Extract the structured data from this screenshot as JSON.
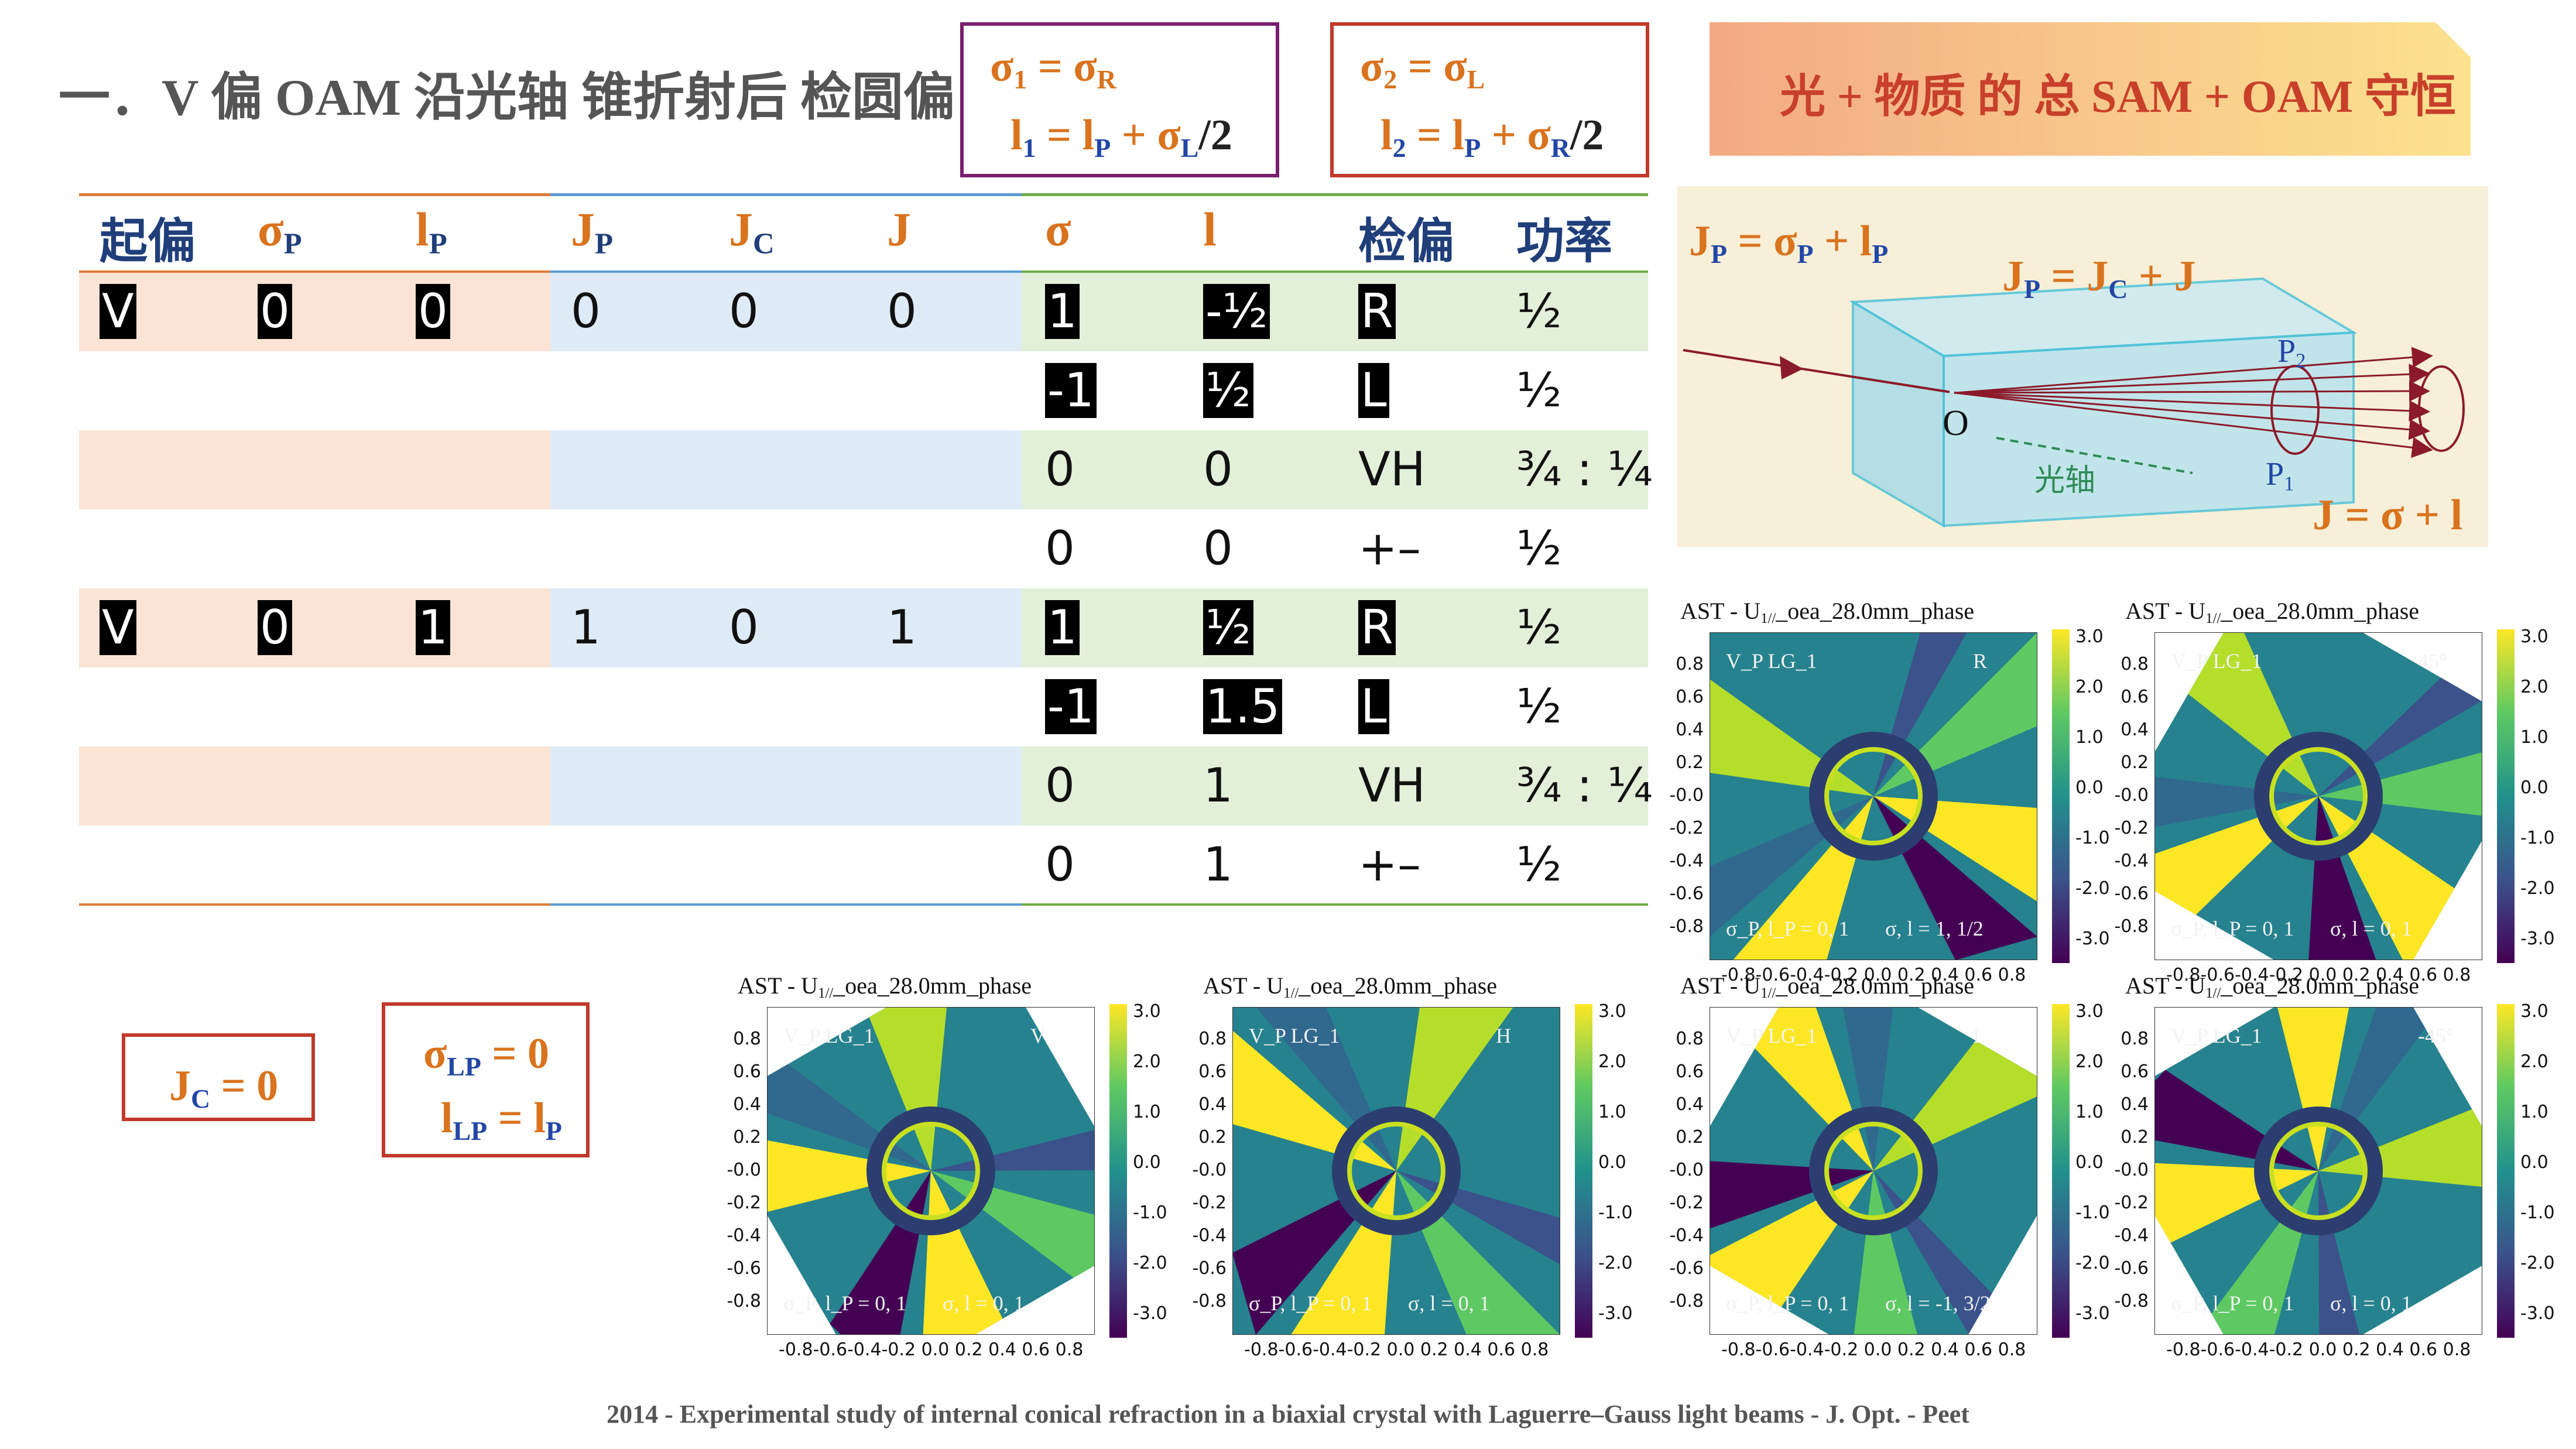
{
  "title": "一．V 偏 OAM 沿光轴 锥折射后 检圆偏",
  "banner": "光 + 物质 的 总 SAM + OAM 守恒",
  "formulas": {
    "box1": {
      "l1_a": "σ",
      "l1_s1": "1",
      "l1_b": " = σ",
      "l1_s2": "R",
      "l2_a": "l",
      "l2_s1": "1",
      "l2_b": " = l",
      "l2_s2": "P",
      "l2_c": " + σ",
      "l2_s3": "L",
      "l2_d": "/2"
    },
    "box2": {
      "l1_a": "σ",
      "l1_s1": "2",
      "l1_b": " = σ",
      "l1_s2": "L",
      "l2_a": "l",
      "l2_s1": "2",
      "l2_b": " = l",
      "l2_s2": "P",
      "l2_c": " + σ",
      "l2_s3": "R",
      "l2_d": "/2"
    },
    "jc": {
      "a": "J",
      "s": "C",
      "b": " = 0"
    },
    "sigma_lp": {
      "l1_a": "σ",
      "l1_s": "LP",
      "l1_b": " = 0",
      "l2_a": "l",
      "l2_s": "LP",
      "l2_b": " = l",
      "l2_s2": "P"
    }
  },
  "table": {
    "headers": [
      {
        "t": "起偏",
        "s": ""
      },
      {
        "t": "σ",
        "s": "P"
      },
      {
        "t": "l",
        "s": "P"
      },
      {
        "t": "J",
        "s": "P"
      },
      {
        "t": "J",
        "s": "C"
      },
      {
        "t": "J",
        "s": ""
      },
      {
        "t": "σ",
        "s": ""
      },
      {
        "t": "l",
        "s": ""
      },
      {
        "t": "检偏",
        "s": ""
      },
      {
        "t": "功率",
        "s": ""
      }
    ],
    "rows": [
      [
        "V",
        "0",
        "0",
        "0",
        "0",
        "0",
        "1",
        "-½",
        "R",
        "½"
      ],
      [
        "",
        "",
        "",
        "",
        "",
        "",
        "-1",
        "½",
        "L",
        "½"
      ],
      [
        "",
        "",
        "",
        "",
        "",
        "",
        "0",
        "0",
        "VH",
        "¾ : ¼"
      ],
      [
        "",
        "",
        "",
        "",
        "",
        "",
        "0",
        "0",
        "+–",
        "½"
      ],
      [
        "V",
        "0",
        "1",
        "1",
        "0",
        "1",
        "1",
        "½",
        "R",
        "½"
      ],
      [
        "",
        "",
        "",
        "",
        "",
        "",
        "-1",
        "1.5",
        "L",
        "½"
      ],
      [
        "",
        "",
        "",
        "",
        "",
        "",
        "0",
        "1",
        "VH",
        "¾ : ¼"
      ],
      [
        "",
        "",
        "",
        "",
        "",
        "",
        "0",
        "1",
        "+–",
        "½"
      ]
    ]
  },
  "diagram": {
    "jp_a": "J",
    "jp_s": "P",
    "jp_b": " = σ",
    "jp_s2": "P",
    "jp_c": " + l",
    "jp_s3": "P",
    "inner_a": "J",
    "inner_s": "P",
    "inner_b": " = J",
    "inner_s2": "C",
    "inner_c": " + J",
    "j_eq": "J = σ + l",
    "o": "O",
    "p1": "P",
    "p1_s": "1",
    "p2": "P",
    "p2_s": "2",
    "axis": "光轴"
  },
  "plots": [
    {
      "title_a": "AST - U",
      "title_s": "1//",
      "title_b": "_oea_28.0mm_phase",
      "pol": "R",
      "left": "σ_P, l_P = 0, 1",
      "right": "σ, l = 1, 1/2"
    },
    {
      "title_a": "AST - U",
      "title_s": "1//",
      "title_b": "_oea_28.0mm_phase",
      "pol": "45°",
      "left": "σ_P, l_P = 0, 1",
      "right": "σ, l = 0, 1"
    },
    {
      "title_a": "AST - U",
      "title_s": "1//",
      "title_b": "_oea_28.0mm_phase",
      "pol": "V",
      "left": "σ_P, l_P = 0, 1",
      "right": "σ, l = 0, 1"
    },
    {
      "title_a": "AST - U",
      "title_s": "1//",
      "title_b": "_oea_28.0mm_phase",
      "pol": "H",
      "left": "σ_P, l_P = 0, 1",
      "right": "σ, l = 0, 1"
    },
    {
      "title_a": "AST - U",
      "title_s": "1//",
      "title_b": "_oea_28.0mm_phase",
      "pol": "L",
      "left": "σ_P, l_P = 0, 1",
      "right": "σ, l = -1, 3/2"
    },
    {
      "title_a": "AST - U",
      "title_s": "1//",
      "title_b": "_oea_28.0mm_phase",
      "pol": "-45°",
      "left": "σ_P, l_P = 0, 1",
      "right": "σ, l = 0, 1"
    }
  ],
  "plot_common": {
    "corner": "V_P  LG_1",
    "yticks": [
      "0.8",
      "0.6",
      "0.4",
      "0.2",
      "-0.0",
      "-0.2",
      "-0.4",
      "-0.6",
      "-0.8"
    ],
    "xticks": "-0.8-0.6-0.4-0.2 0.0 0.2 0.4 0.6 0.8",
    "cticks": [
      "3.0",
      "2.0",
      "1.0",
      "0.0",
      "-1.0",
      "-2.0",
      "-3.0"
    ]
  },
  "footer": "2014 - Experimental study of internal conical refraction in a biaxial crystal with Laguerre–Gauss light beams - J. Opt. - Peet",
  "colors": {
    "orange": "#d9731e",
    "navy": "#1f3e7a",
    "purple": "#7a1f6e",
    "red": "#c0392b"
  }
}
